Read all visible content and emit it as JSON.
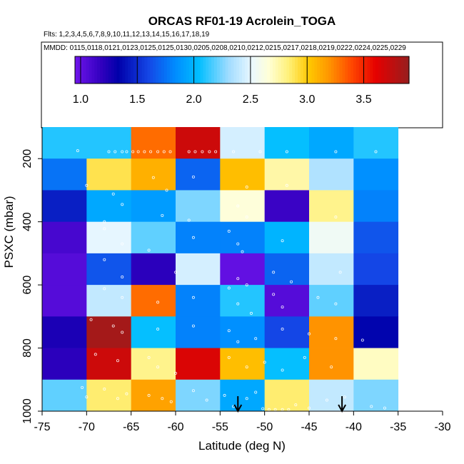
{
  "chart_data": {
    "type": "heatmap",
    "title": "ORCAS RF01-19 Acrolein_TOGA",
    "flights_text": "Flts: 1,2,3,4,5,6,7,8,9,10,11,12,13,14,15,16,17,18,19",
    "dates_text": "MMDD: 0115,0118,0121,0123,0125,0125,0130,0205,0208,0210,0212,0215,0217,0218,0219,0222,0224,0225,0229",
    "xlabel": "Latitude (deg N)",
    "ylabel": "PSXC (mbar)",
    "xlim": [
      -75,
      -30
    ],
    "ylim": [
      1000,
      100
    ],
    "x_ticks": [
      -75,
      -70,
      -65,
      -60,
      -55,
      -50,
      -45,
      -40,
      -35,
      -30
    ],
    "y_ticks": [
      200,
      400,
      600,
      800,
      1000
    ],
    "x_edges": [
      -75,
      -70,
      -65,
      -60,
      -55,
      -50,
      -45,
      -40,
      -35
    ],
    "y_edges": [
      100,
      200,
      300,
      400,
      500,
      600,
      700,
      800,
      900,
      1000
    ],
    "colorbar": {
      "min": 0.95,
      "max": 3.9,
      "ticks": [
        1.0,
        1.5,
        2.0,
        2.5,
        3.0,
        3.5
      ]
    },
    "values": [
      [
        2.1,
        2.1,
        3.3,
        3.7,
        2.45,
        2.05,
        1.95,
        2.1
      ],
      [
        1.75,
        2.9,
        3.1,
        1.7,
        3.05,
        2.75,
        2.35,
        1.85
      ],
      [
        1.45,
        1.95,
        1.9,
        2.25,
        2.65,
        1.15,
        2.8,
        1.8
      ],
      [
        1.1,
        2.5,
        2.2,
        1.8,
        1.8,
        2.0,
        2.55,
        1.65
      ],
      [
        1.05,
        1.65,
        1.2,
        2.45,
        1.0,
        1.7,
        2.4,
        1.6
      ],
      [
        1.05,
        2.4,
        3.3,
        1.8,
        2.1,
        1.05,
        2.2,
        1.45
      ],
      [
        1.25,
        3.85,
        2.05,
        1.8,
        1.85,
        1.6,
        3.2,
        1.35
      ],
      [
        1.2,
        3.7,
        2.8,
        3.65,
        3.05,
        2.05,
        3.2,
        2.7
      ],
      [
        2.2,
        2.85,
        3.15,
        2.25,
        1.95,
        2.85,
        2.4,
        2.25
      ]
    ],
    "sample_points": [
      [
        -71.0,
        175
      ],
      [
        -67.5,
        178
      ],
      [
        -66.8,
        178
      ],
      [
        -66.0,
        178
      ],
      [
        -65.5,
        178
      ],
      [
        -64.8,
        178
      ],
      [
        -64.2,
        178
      ],
      [
        -63.5,
        178
      ],
      [
        -62.8,
        178
      ],
      [
        -62.0,
        178
      ],
      [
        -61.3,
        178
      ],
      [
        -60.6,
        178
      ],
      [
        -58.5,
        178
      ],
      [
        -57.8,
        178
      ],
      [
        -57.0,
        178
      ],
      [
        -56.2,
        178
      ],
      [
        -55.5,
        178
      ],
      [
        -53.5,
        178
      ],
      [
        -50.5,
        178
      ],
      [
        -47.5,
        178
      ],
      [
        -42.0,
        178
      ],
      [
        -37.5,
        178
      ],
      [
        -70.0,
        285
      ],
      [
        -62.5,
        260
      ],
      [
        -61.0,
        300
      ],
      [
        -58.0,
        258
      ],
      [
        -52.0,
        290
      ],
      [
        -47.5,
        285
      ],
      [
        -67.0,
        312
      ],
      [
        -66.0,
        345
      ],
      [
        -61.5,
        380
      ],
      [
        -53.0,
        350
      ],
      [
        -68.0,
        400
      ],
      [
        -58.5,
        395
      ],
      [
        -52.0,
        385
      ],
      [
        -42.0,
        385
      ],
      [
        -68.0,
        422
      ],
      [
        -66.0,
        470
      ],
      [
        -63.0,
        490
      ],
      [
        -58.0,
        450
      ],
      [
        -54.0,
        430
      ],
      [
        -53.0,
        470
      ],
      [
        -52.5,
        495
      ],
      [
        -48.0,
        460
      ],
      [
        -68.0,
        520
      ],
      [
        -66.0,
        575
      ],
      [
        -60.0,
        560
      ],
      [
        -53.0,
        580
      ],
      [
        -52.0,
        600
      ],
      [
        -49.0,
        560
      ],
      [
        -47.0,
        590
      ],
      [
        -41.5,
        560
      ],
      [
        -68.0,
        612
      ],
      [
        -66.0,
        640
      ],
      [
        -62.0,
        655
      ],
      [
        -58.0,
        640
      ],
      [
        -54.0,
        610
      ],
      [
        -53.0,
        660
      ],
      [
        -51.5,
        690
      ],
      [
        -49.0,
        630
      ],
      [
        -48.0,
        670
      ],
      [
        -44.0,
        640
      ],
      [
        -42.0,
        660
      ],
      [
        -69.5,
        710
      ],
      [
        -67.0,
        730
      ],
      [
        -66.0,
        750
      ],
      [
        -62.0,
        740
      ],
      [
        -58.0,
        730
      ],
      [
        -54.0,
        745
      ],
      [
        -53.0,
        780
      ],
      [
        -51.0,
        770
      ],
      [
        -48.0,
        740
      ],
      [
        -45.0,
        755
      ],
      [
        -42.0,
        770
      ],
      [
        -39.0,
        775
      ],
      [
        -69.0,
        820
      ],
      [
        -66.5,
        840
      ],
      [
        -63.0,
        830
      ],
      [
        -62.0,
        860
      ],
      [
        -60.0,
        880
      ],
      [
        -54.0,
        830
      ],
      [
        -52.0,
        860
      ],
      [
        -50.0,
        845
      ],
      [
        -48.0,
        870
      ],
      [
        -45.5,
        830
      ],
      [
        -42.5,
        860
      ],
      [
        -70.5,
        925
      ],
      [
        -70.0,
        955
      ],
      [
        -68.0,
        930
      ],
      [
        -66.5,
        960
      ],
      [
        -65.5,
        945
      ],
      [
        -63.0,
        950
      ],
      [
        -61.5,
        960
      ],
      [
        -60.5,
        970
      ],
      [
        -58.0,
        935
      ],
      [
        -56.5,
        965
      ],
      [
        -54.5,
        950
      ],
      [
        -53.5,
        985
      ],
      [
        -52.0,
        960
      ],
      [
        -51.0,
        940
      ],
      [
        -50.2,
        992
      ],
      [
        -49.5,
        995
      ],
      [
        -48.8,
        995
      ],
      [
        -48.0,
        995
      ],
      [
        -47.3,
        995
      ],
      [
        -46.5,
        980
      ],
      [
        -45.0,
        990
      ],
      [
        -43.0,
        965
      ],
      [
        -41.0,
        955
      ],
      [
        -38.0,
        985
      ],
      [
        -36.5,
        990
      ]
    ],
    "arrows": [
      -53.0,
      -41.3
    ]
  }
}
